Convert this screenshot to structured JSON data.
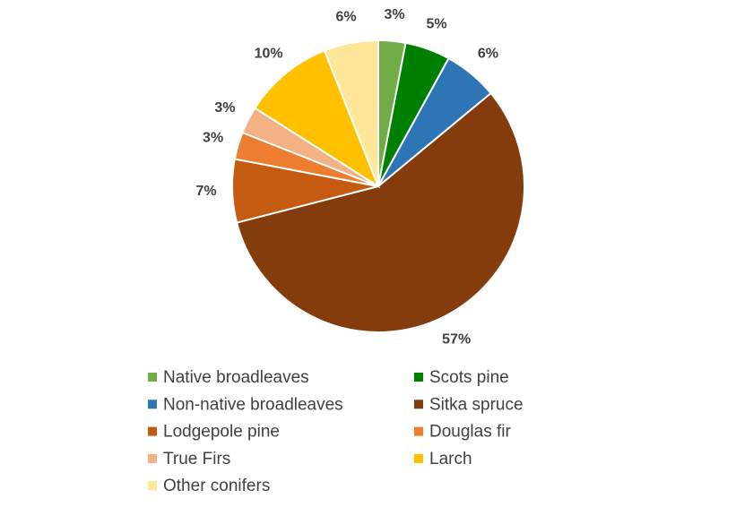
{
  "chart_data": {
    "type": "pie",
    "categories": [
      "Native broadleaves",
      "Scots pine",
      "Non-native broadleaves",
      "Sitka spruce",
      "Lodgepole pine",
      "Douglas fir",
      "True Firs",
      "Larch",
      "Other conifers"
    ],
    "values": [
      3,
      5,
      6,
      57,
      7,
      3,
      3,
      10,
      6
    ],
    "value_labels": [
      "3%",
      "5%",
      "6%",
      "57%",
      "7%",
      "3%",
      "3%",
      "10%",
      "6%"
    ],
    "colors": [
      "#70ad47",
      "#008000",
      "#2e75b6",
      "#843c0c",
      "#c55a11",
      "#ed7d31",
      "#f4b183",
      "#ffc000",
      "#ffe699"
    ],
    "legend": "bottom"
  }
}
